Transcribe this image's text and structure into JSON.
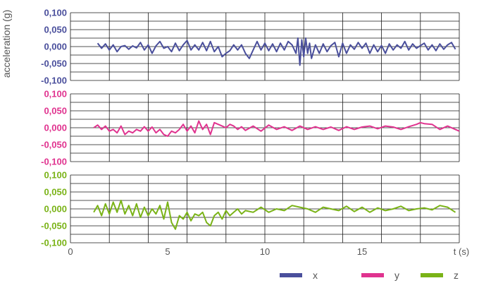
{
  "chart_data": {
    "type": "line",
    "ylabel": "acceleration (g)",
    "xlabel": "t (s)",
    "x_ticks": [
      "0",
      "5",
      "10",
      "15"
    ],
    "xlim": [
      0,
      20
    ],
    "ylim": [
      -0.1,
      0.1
    ],
    "y_ticks": [
      "0,100",
      "0,050",
      "0,000",
      "-0,050",
      "-0,100"
    ],
    "legend_position": "bottom-right",
    "grid": true,
    "panels": [
      {
        "name": "x",
        "color": "#4a4f9c",
        "x": [
          1.4,
          1.6,
          1.8,
          2.0,
          2.2,
          2.4,
          2.6,
          2.8,
          3.0,
          3.2,
          3.4,
          3.6,
          3.8,
          4.0,
          4.2,
          4.4,
          4.6,
          4.8,
          5.0,
          5.2,
          5.4,
          5.6,
          5.8,
          6.0,
          6.2,
          6.4,
          6.6,
          6.8,
          7.0,
          7.2,
          7.4,
          7.6,
          7.8,
          8.0,
          8.2,
          8.4,
          8.6,
          8.8,
          9.0,
          9.2,
          9.4,
          9.6,
          9.8,
          10.0,
          10.2,
          10.4,
          10.6,
          10.8,
          11.0,
          11.2,
          11.4,
          11.6,
          11.7,
          11.8,
          11.9,
          12.0,
          12.1,
          12.2,
          12.3,
          12.4,
          12.6,
          12.8,
          13.0,
          13.2,
          13.4,
          13.6,
          13.8,
          14.0,
          14.2,
          14.4,
          14.6,
          14.8,
          15.0,
          15.2,
          15.4,
          15.6,
          15.8,
          16.0,
          16.2,
          16.4,
          16.6,
          16.8,
          17.0,
          17.2,
          17.4,
          17.6,
          17.8,
          18.0,
          18.2,
          18.4,
          18.6,
          18.8,
          19.0,
          19.2,
          19.4,
          19.6,
          19.8
        ],
        "y": [
          0.01,
          -0.005,
          0.008,
          -0.01,
          0.005,
          -0.015,
          0.0,
          0.003,
          -0.008,
          0.002,
          -0.004,
          0.012,
          -0.01,
          0.005,
          -0.02,
          0.002,
          0.015,
          -0.005,
          0.0,
          -0.015,
          0.01,
          -0.012,
          0.005,
          0.018,
          -0.01,
          0.005,
          -0.01,
          0.012,
          -0.012,
          0.015,
          -0.015,
          0.0,
          -0.03,
          -0.02,
          -0.012,
          0.005,
          -0.01,
          0.005,
          -0.02,
          -0.035,
          -0.01,
          0.015,
          -0.01,
          0.01,
          -0.012,
          0.008,
          -0.015,
          0.01,
          -0.01,
          0.015,
          0.005,
          -0.02,
          0.025,
          -0.055,
          0.02,
          -0.03,
          0.025,
          -0.02,
          0.01,
          -0.035,
          0.005,
          -0.02,
          0.008,
          -0.015,
          0.003,
          0.012,
          -0.03,
          0.01,
          -0.02,
          0.005,
          -0.008,
          0.012,
          -0.005,
          0.01,
          -0.02,
          0.005,
          -0.015,
          0.003,
          -0.02,
          0.008,
          -0.01,
          0.005,
          -0.005,
          0.015,
          -0.01,
          0.008,
          -0.005,
          0.003,
          0.01,
          -0.01,
          0.005,
          -0.012,
          0.008,
          -0.008,
          0.005,
          0.012,
          -0.008
        ]
      },
      {
        "name": "y",
        "color": "#e0338f",
        "x": [
          1.2,
          1.4,
          1.6,
          1.8,
          2.0,
          2.2,
          2.4,
          2.6,
          2.8,
          3.0,
          3.2,
          3.4,
          3.6,
          3.8,
          4.0,
          4.2,
          4.4,
          4.6,
          4.8,
          5.0,
          5.2,
          5.4,
          5.6,
          5.8,
          6.0,
          6.2,
          6.4,
          6.6,
          6.8,
          7.0,
          7.2,
          7.4,
          7.6,
          7.8,
          8.0,
          8.2,
          8.4,
          8.6,
          8.8,
          9.0,
          9.4,
          9.8,
          10.2,
          10.6,
          11.0,
          11.4,
          11.8,
          12.2,
          12.6,
          13.0,
          13.4,
          13.8,
          14.2,
          14.6,
          15.0,
          15.4,
          15.8,
          16.2,
          16.6,
          17.0,
          17.4,
          17.8,
          18.0,
          18.2,
          18.6,
          19.0,
          19.4,
          19.8,
          20.0
        ],
        "y": [
          0.0,
          0.008,
          -0.005,
          0.005,
          -0.01,
          -0.005,
          -0.015,
          0.005,
          -0.02,
          -0.01,
          -0.015,
          -0.005,
          -0.01,
          0.003,
          -0.01,
          0.002,
          -0.015,
          -0.005,
          -0.02,
          -0.025,
          -0.01,
          -0.015,
          -0.005,
          0.01,
          -0.01,
          0.005,
          -0.015,
          0.02,
          -0.005,
          0.01,
          -0.02,
          0.015,
          0.01,
          0.005,
          0.0,
          0.01,
          0.005,
          -0.005,
          0.003,
          -0.008,
          0.005,
          -0.01,
          0.008,
          -0.005,
          0.003,
          -0.008,
          0.005,
          -0.005,
          0.003,
          -0.005,
          0.002,
          -0.008,
          0.003,
          -0.005,
          0.002,
          0.005,
          -0.003,
          0.005,
          0.002,
          -0.005,
          0.003,
          0.01,
          0.015,
          0.012,
          0.01,
          -0.005,
          0.005,
          -0.005,
          -0.01
        ]
      },
      {
        "name": "z",
        "color": "#7ab317",
        "x": [
          1.2,
          1.4,
          1.6,
          1.8,
          2.0,
          2.2,
          2.4,
          2.6,
          2.8,
          3.0,
          3.2,
          3.4,
          3.6,
          3.8,
          4.0,
          4.2,
          4.4,
          4.6,
          4.8,
          5.0,
          5.2,
          5.4,
          5.6,
          5.8,
          6.0,
          6.2,
          6.4,
          6.6,
          6.8,
          7.0,
          7.2,
          7.4,
          7.6,
          7.8,
          8.0,
          8.2,
          8.4,
          8.6,
          8.8,
          9.0,
          9.4,
          9.8,
          10.2,
          10.6,
          11.0,
          11.4,
          11.8,
          12.2,
          12.6,
          13.0,
          13.4,
          13.8,
          14.2,
          14.6,
          15.0,
          15.4,
          15.8,
          16.2,
          16.6,
          17.0,
          17.4,
          17.8,
          18.2,
          18.6,
          19.0,
          19.4,
          19.8
        ],
        "y": [
          -0.01,
          0.01,
          -0.02,
          0.015,
          -0.015,
          0.02,
          -0.01,
          0.025,
          -0.015,
          0.01,
          -0.02,
          0.015,
          -0.025,
          0.005,
          -0.02,
          0.0,
          -0.015,
          0.01,
          -0.03,
          0.02,
          -0.04,
          -0.06,
          -0.02,
          -0.03,
          -0.01,
          -0.035,
          -0.015,
          -0.02,
          -0.01,
          -0.04,
          -0.05,
          -0.02,
          -0.01,
          -0.03,
          -0.005,
          -0.02,
          -0.01,
          0.0,
          -0.015,
          -0.005,
          -0.01,
          0.005,
          -0.01,
          0.0,
          -0.005,
          0.01,
          0.005,
          0.0,
          -0.01,
          0.005,
          0.0,
          -0.005,
          0.008,
          -0.008,
          0.005,
          -0.01,
          0.003,
          -0.005,
          0.0,
          0.008,
          -0.005,
          0.0,
          0.003,
          -0.003,
          0.01,
          0.005,
          -0.01
        ]
      }
    ]
  }
}
